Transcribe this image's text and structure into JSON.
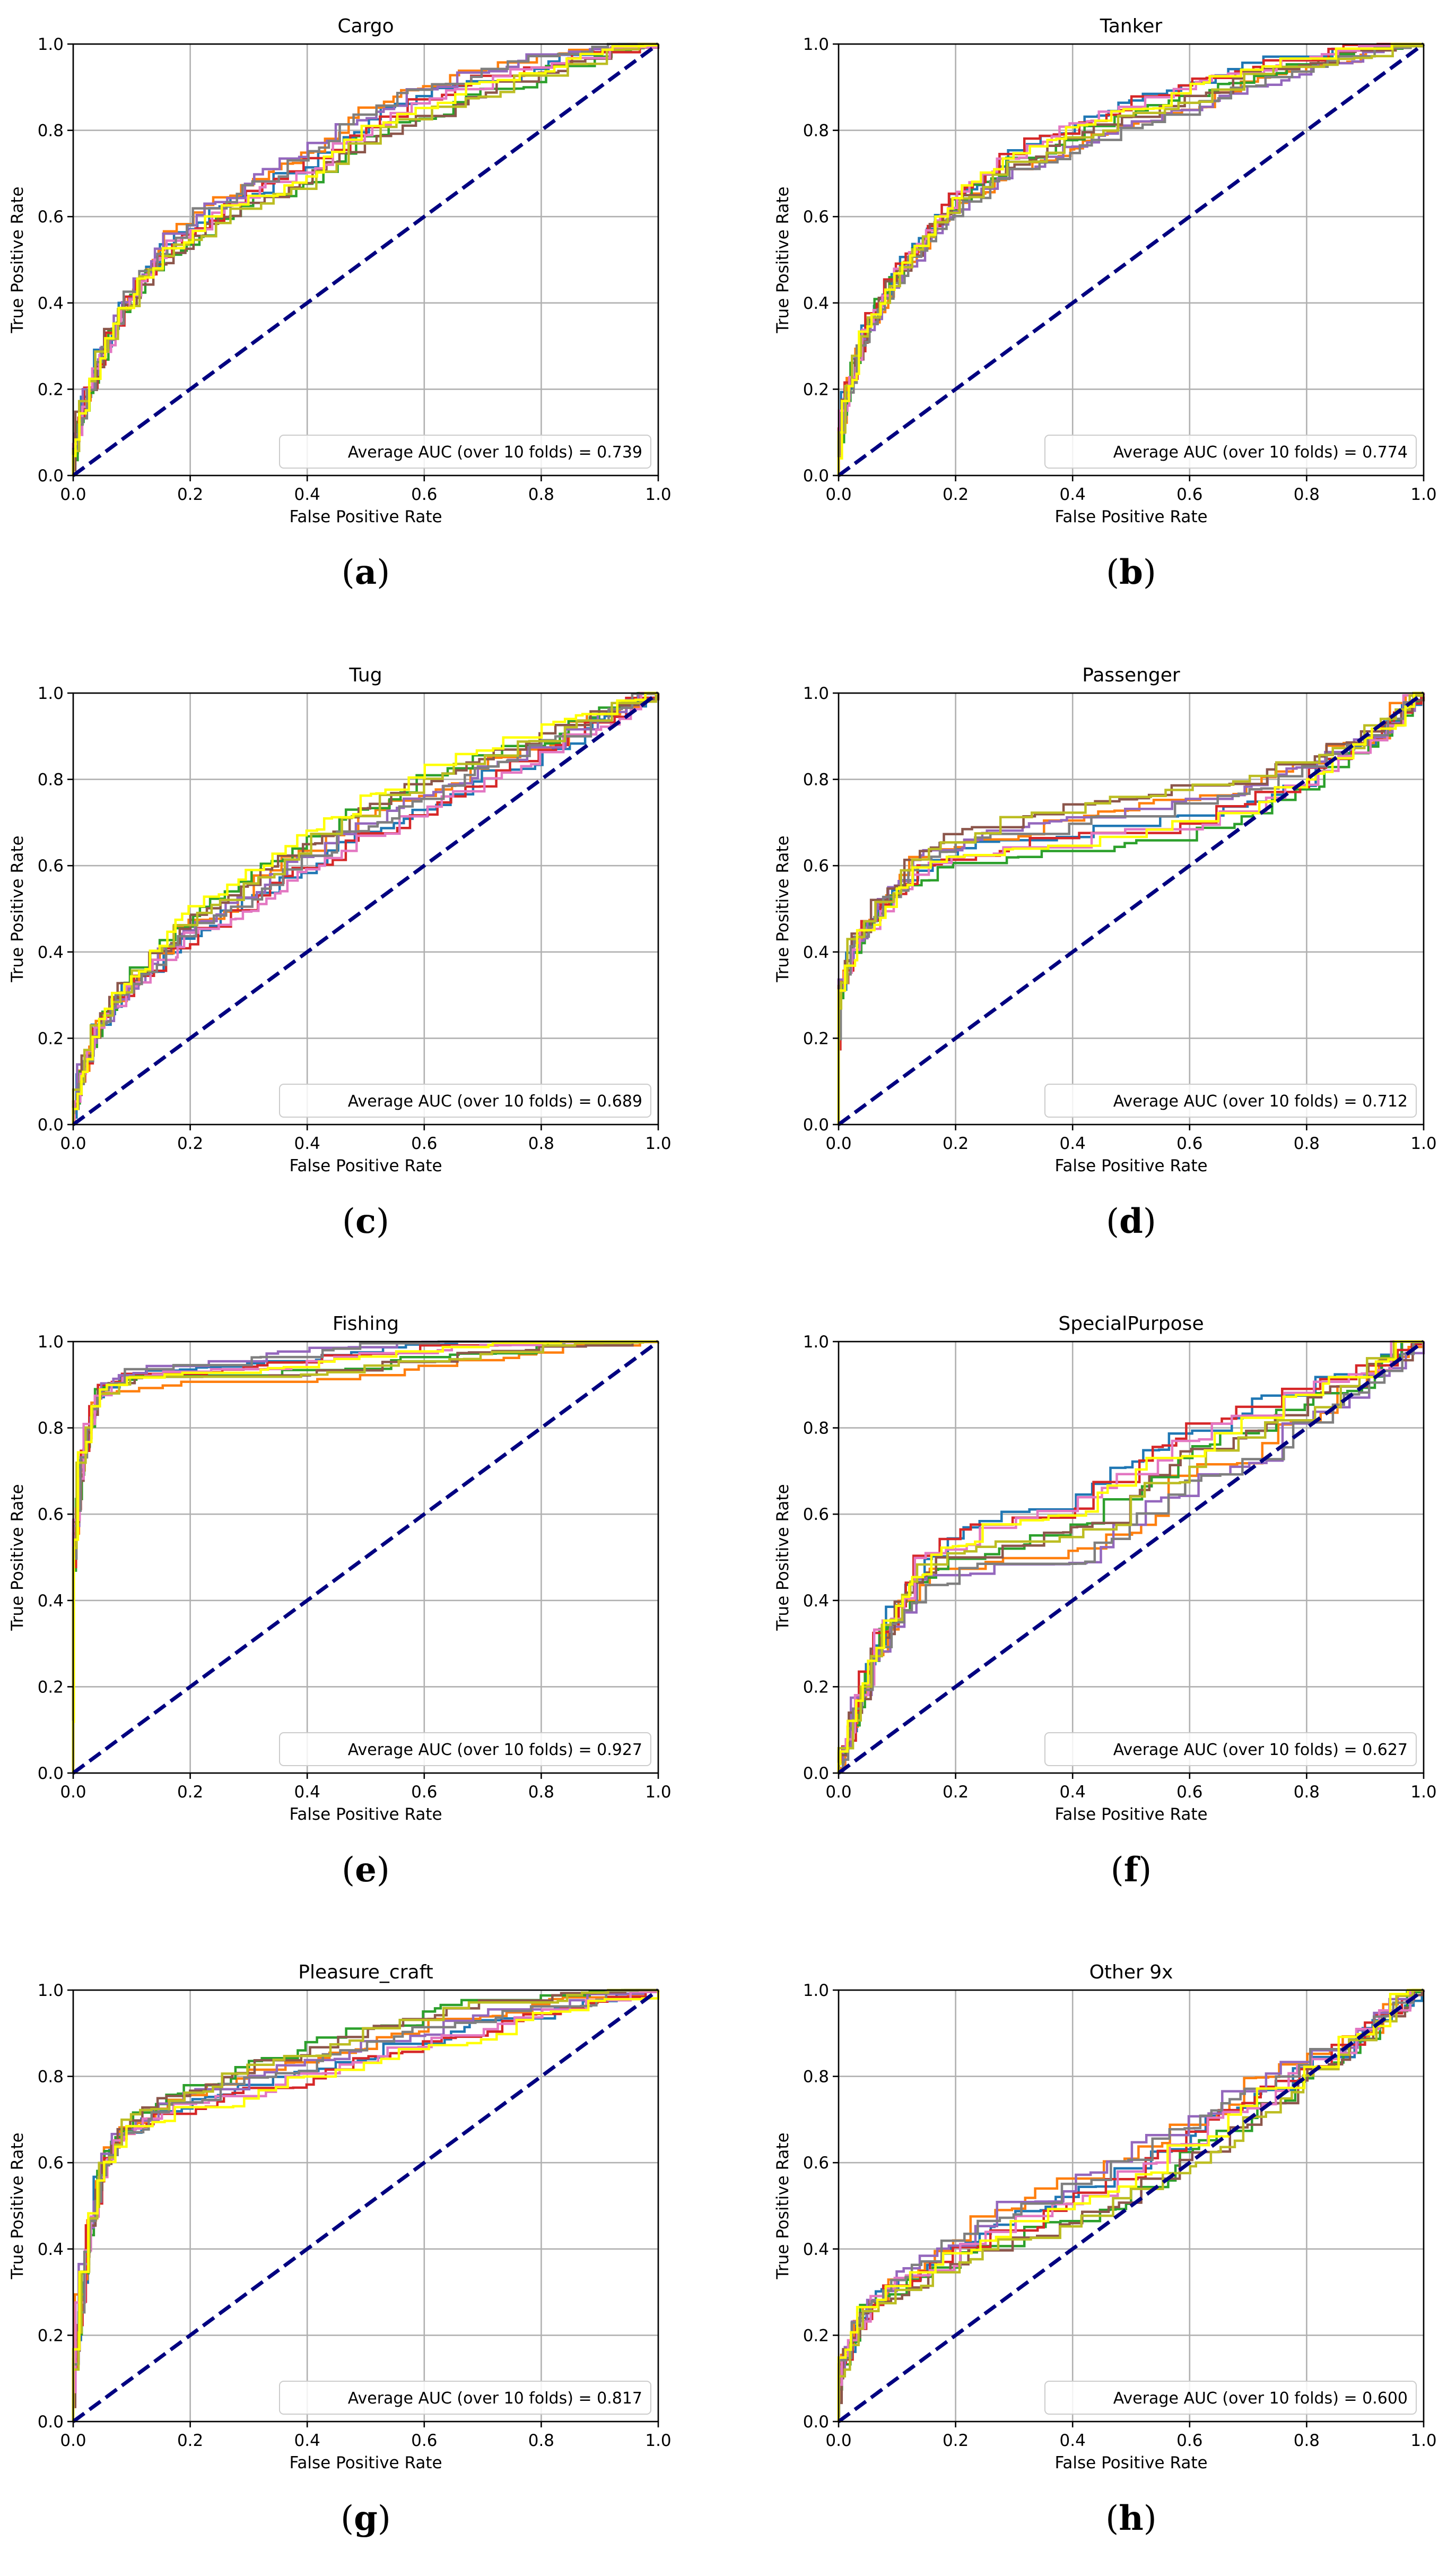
{
  "figure": {
    "legend_text_template": "Average AUC (over 10 folds) = {auc}",
    "fold_colors": [
      "#1f77b4",
      "#ff7f0e",
      "#2ca02c",
      "#d62728",
      "#9467bd",
      "#8c564b",
      "#e377c2",
      "#7f7f7f",
      "#bcbd22",
      "#ffff00"
    ],
    "chance_line_color": "#000080",
    "grid_color": "#b0b0b0"
  },
  "chart_data": [
    {
      "type": "line",
      "panel_label": "(a)",
      "title": "Cargo",
      "xlabel": "False Positive Rate",
      "ylabel": "True Positive Rate",
      "xlim": [
        0,
        1
      ],
      "ylim": [
        0,
        1
      ],
      "xticks": [
        "0.0",
        "0.2",
        "0.4",
        "0.6",
        "0.8",
        "1.0"
      ],
      "yticks": [
        "0.0",
        "0.2",
        "0.4",
        "0.6",
        "0.8",
        "1.0"
      ],
      "grid": true,
      "legend": {
        "text": "Average AUC (over 10 folds) = 0.739",
        "auc": 0.739,
        "placement": "lower-right"
      },
      "chance_line": [
        [
          0,
          0
        ],
        [
          1,
          1
        ]
      ],
      "folds": 10,
      "envelope": [
        [
          0,
          0
        ],
        [
          0.02,
          0.13
        ],
        [
          0.05,
          0.26
        ],
        [
          0.1,
          0.4
        ],
        [
          0.15,
          0.5
        ],
        [
          0.2,
          0.56
        ],
        [
          0.3,
          0.64
        ],
        [
          0.4,
          0.7
        ],
        [
          0.5,
          0.8
        ],
        [
          0.6,
          0.86
        ],
        [
          0.7,
          0.9
        ],
        [
          0.8,
          0.94
        ],
        [
          0.9,
          0.97
        ],
        [
          1,
          1
        ]
      ],
      "spread": 0.05
    },
    {
      "type": "line",
      "panel_label": "(b)",
      "title": "Tanker",
      "xlabel": "False Positive Rate",
      "ylabel": "True Positive Rate",
      "xlim": [
        0,
        1
      ],
      "ylim": [
        0,
        1
      ],
      "xticks": [
        "0.0",
        "0.2",
        "0.4",
        "0.6",
        "0.8",
        "1.0"
      ],
      "yticks": [
        "0.0",
        "0.2",
        "0.4",
        "0.6",
        "0.8",
        "1.0"
      ],
      "grid": true,
      "legend": {
        "text": "Average AUC (over 10 folds) = 0.774",
        "auc": 0.774,
        "placement": "lower-right"
      },
      "chance_line": [
        [
          0,
          0
        ],
        [
          1,
          1
        ]
      ],
      "folds": 10,
      "envelope": [
        [
          0,
          0
        ],
        [
          0.02,
          0.18
        ],
        [
          0.05,
          0.32
        ],
        [
          0.1,
          0.45
        ],
        [
          0.15,
          0.53
        ],
        [
          0.2,
          0.62
        ],
        [
          0.3,
          0.72
        ],
        [
          0.4,
          0.78
        ],
        [
          0.5,
          0.83
        ],
        [
          0.6,
          0.87
        ],
        [
          0.7,
          0.92
        ],
        [
          0.8,
          0.95
        ],
        [
          0.9,
          0.98
        ],
        [
          1,
          1
        ]
      ],
      "spread": 0.04
    },
    {
      "type": "line",
      "panel_label": "(c)",
      "title": "Tug",
      "xlabel": "False Positive Rate",
      "ylabel": "True Positive Rate",
      "xlim": [
        0,
        1
      ],
      "ylim": [
        0,
        1
      ],
      "xticks": [
        "0.0",
        "0.2",
        "0.4",
        "0.6",
        "0.8",
        "1.0"
      ],
      "yticks": [
        "0.0",
        "0.2",
        "0.4",
        "0.6",
        "0.8",
        "1.0"
      ],
      "grid": true,
      "legend": {
        "text": "Average AUC (over 10 folds) = 0.689",
        "auc": 0.689,
        "placement": "lower-right"
      },
      "chance_line": [
        [
          0,
          0
        ],
        [
          1,
          1
        ]
      ],
      "folds": 10,
      "envelope": [
        [
          0,
          0
        ],
        [
          0.02,
          0.12
        ],
        [
          0.05,
          0.22
        ],
        [
          0.1,
          0.32
        ],
        [
          0.2,
          0.45
        ],
        [
          0.3,
          0.53
        ],
        [
          0.4,
          0.62
        ],
        [
          0.5,
          0.7
        ],
        [
          0.6,
          0.76
        ],
        [
          0.7,
          0.82
        ],
        [
          0.8,
          0.87
        ],
        [
          0.9,
          0.93
        ],
        [
          1,
          1
        ]
      ],
      "spread": 0.05
    },
    {
      "type": "line",
      "panel_label": "(d)",
      "title": "Passenger",
      "xlabel": "False Positive Rate",
      "ylabel": "True Positive Rate",
      "xlim": [
        0,
        1
      ],
      "ylim": [
        0,
        1
      ],
      "xticks": [
        "0.0",
        "0.2",
        "0.4",
        "0.6",
        "0.8",
        "1.0"
      ],
      "yticks": [
        "0.0",
        "0.2",
        "0.4",
        "0.6",
        "0.8",
        "1.0"
      ],
      "grid": true,
      "legend": {
        "text": "Average AUC (over 10 folds) = 0.712",
        "auc": 0.712,
        "placement": "lower-right"
      },
      "chance_line": [
        [
          0,
          0
        ],
        [
          1,
          1
        ]
      ],
      "folds": 10,
      "envelope": [
        [
          0,
          0
        ],
        [
          0.005,
          0.3
        ],
        [
          0.03,
          0.4
        ],
        [
          0.08,
          0.5
        ],
        [
          0.15,
          0.6
        ],
        [
          0.25,
          0.64
        ],
        [
          0.4,
          0.67
        ],
        [
          0.55,
          0.7
        ],
        [
          0.7,
          0.74
        ],
        [
          0.8,
          0.8
        ],
        [
          0.9,
          0.87
        ],
        [
          0.95,
          0.92
        ],
        [
          1,
          1
        ]
      ],
      "spread": 0.06
    },
    {
      "type": "line",
      "panel_label": "(e)",
      "title": "Fishing",
      "xlabel": "False Positive Rate",
      "ylabel": "True Positive Rate",
      "xlim": [
        0,
        1
      ],
      "ylim": [
        0,
        1
      ],
      "xticks": [
        "0.0",
        "0.2",
        "0.4",
        "0.6",
        "0.8",
        "1.0"
      ],
      "yticks": [
        "0.0",
        "0.2",
        "0.4",
        "0.6",
        "0.8",
        "1.0"
      ],
      "grid": true,
      "legend": {
        "text": "Average AUC (over 10 folds) = 0.927",
        "auc": 0.927,
        "placement": "lower-right"
      },
      "chance_line": [
        [
          0,
          0
        ],
        [
          1,
          1
        ]
      ],
      "folds": 10,
      "envelope": [
        [
          0,
          0
        ],
        [
          0.005,
          0.5
        ],
        [
          0.02,
          0.72
        ],
        [
          0.05,
          0.88
        ],
        [
          0.1,
          0.91
        ],
        [
          0.3,
          0.92
        ],
        [
          0.5,
          0.95
        ],
        [
          0.7,
          0.98
        ],
        [
          1,
          1
        ]
      ],
      "spread": 0.04
    },
    {
      "type": "line",
      "panel_label": "(f)",
      "title": "SpecialPurpose",
      "xlabel": "False Positive Rate",
      "ylabel": "True Positive Rate",
      "xlim": [
        0,
        1
      ],
      "ylim": [
        0,
        1
      ],
      "xticks": [
        "0.0",
        "0.2",
        "0.4",
        "0.6",
        "0.8",
        "1.0"
      ],
      "yticks": [
        "0.0",
        "0.2",
        "0.4",
        "0.6",
        "0.8",
        "1.0"
      ],
      "grid": true,
      "legend": {
        "text": "Average AUC (over 10 folds) = 0.627",
        "auc": 0.627,
        "placement": "lower-right"
      },
      "chance_line": [
        [
          0,
          0
        ],
        [
          1,
          1
        ]
      ],
      "folds": 10,
      "envelope": [
        [
          0,
          0
        ],
        [
          0.03,
          0.1
        ],
        [
          0.08,
          0.3
        ],
        [
          0.15,
          0.45
        ],
        [
          0.25,
          0.5
        ],
        [
          0.4,
          0.52
        ],
        [
          0.5,
          0.6
        ],
        [
          0.6,
          0.7
        ],
        [
          0.7,
          0.75
        ],
        [
          0.8,
          0.82
        ],
        [
          0.9,
          0.9
        ],
        [
          1,
          1
        ]
      ],
      "spread": 0.09
    },
    {
      "type": "line",
      "panel_label": "(g)",
      "title": "Pleasure_craft",
      "xlabel": "False Positive Rate",
      "ylabel": "True Positive Rate",
      "xlim": [
        0,
        1
      ],
      "ylim": [
        0,
        1
      ],
      "xticks": [
        "0.0",
        "0.2",
        "0.4",
        "0.6",
        "0.8",
        "1.0"
      ],
      "yticks": [
        "0.0",
        "0.2",
        "0.4",
        "0.6",
        "0.8",
        "1.0"
      ],
      "grid": true,
      "legend": {
        "text": "Average AUC (over 10 folds) = 0.817",
        "auc": 0.817,
        "placement": "lower-right"
      },
      "chance_line": [
        [
          0,
          0
        ],
        [
          1,
          1
        ]
      ],
      "folds": 10,
      "envelope": [
        [
          0,
          0
        ],
        [
          0.01,
          0.15
        ],
        [
          0.03,
          0.4
        ],
        [
          0.06,
          0.6
        ],
        [
          0.1,
          0.68
        ],
        [
          0.2,
          0.74
        ],
        [
          0.3,
          0.78
        ],
        [
          0.4,
          0.82
        ],
        [
          0.5,
          0.86
        ],
        [
          0.6,
          0.9
        ],
        [
          0.7,
          0.93
        ],
        [
          0.8,
          0.95
        ],
        [
          0.9,
          0.97
        ],
        [
          1,
          1
        ]
      ],
      "spread": 0.05
    },
    {
      "type": "line",
      "panel_label": "(h)",
      "title": "Other 9x",
      "xlabel": "False Positive Rate",
      "ylabel": "True Positive Rate",
      "xlim": [
        0,
        1
      ],
      "ylim": [
        0,
        1
      ],
      "xticks": [
        "0.0",
        "0.2",
        "0.4",
        "0.6",
        "0.8",
        "1.0"
      ],
      "yticks": [
        "0.0",
        "0.2",
        "0.4",
        "0.6",
        "0.8",
        "1.0"
      ],
      "grid": true,
      "legend": {
        "text": "Average AUC (over 10 folds) = 0.600",
        "auc": 0.6,
        "placement": "lower-right"
      },
      "chance_line": [
        [
          0,
          0
        ],
        [
          1,
          1
        ]
      ],
      "folds": 10,
      "envelope": [
        [
          0,
          0
        ],
        [
          0.01,
          0.12
        ],
        [
          0.05,
          0.25
        ],
        [
          0.1,
          0.3
        ],
        [
          0.2,
          0.38
        ],
        [
          0.3,
          0.45
        ],
        [
          0.4,
          0.5
        ],
        [
          0.5,
          0.56
        ],
        [
          0.6,
          0.64
        ],
        [
          0.7,
          0.72
        ],
        [
          0.8,
          0.8
        ],
        [
          0.9,
          0.88
        ],
        [
          1,
          1
        ]
      ],
      "spread": 0.07
    }
  ]
}
